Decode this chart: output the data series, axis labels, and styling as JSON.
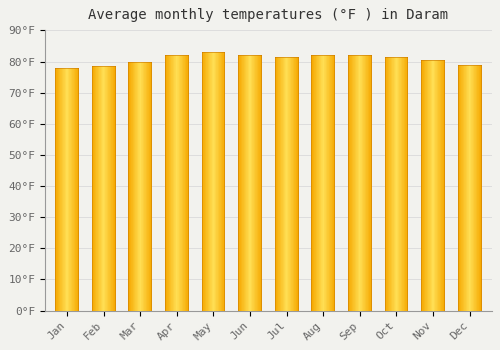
{
  "title": "Average monthly temperatures (°F ) in Daram",
  "months": [
    "Jan",
    "Feb",
    "Mar",
    "Apr",
    "May",
    "Jun",
    "Jul",
    "Aug",
    "Sep",
    "Oct",
    "Nov",
    "Dec"
  ],
  "values": [
    78.0,
    78.5,
    80.0,
    82.0,
    83.0,
    82.0,
    81.5,
    82.0,
    82.0,
    81.5,
    80.5,
    79.0
  ],
  "bar_color_main": "#F5A800",
  "bar_color_light": "#FFD966",
  "bar_color_edge": "#C87800",
  "background_color": "#F2F2EE",
  "grid_color": "#DDDDDD",
  "ytick_labels": [
    "0°F",
    "10°F",
    "20°F",
    "30°F",
    "40°F",
    "50°F",
    "60°F",
    "70°F",
    "80°F",
    "90°F"
  ],
  "ytick_values": [
    0,
    10,
    20,
    30,
    40,
    50,
    60,
    70,
    80,
    90
  ],
  "ylim": [
    0,
    90
  ],
  "title_fontsize": 10,
  "tick_fontsize": 8
}
